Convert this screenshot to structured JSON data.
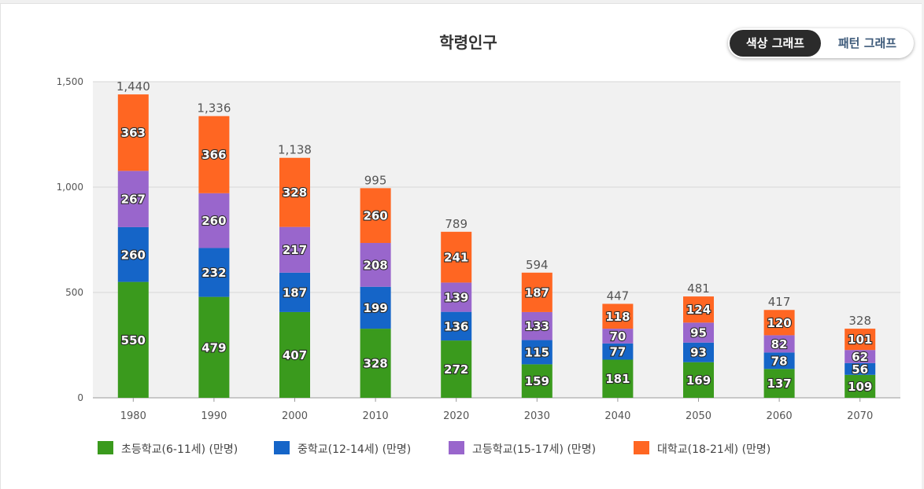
{
  "view_toggle": {
    "color_label": "색상 그래프",
    "pattern_label": "패턴 그래프"
  },
  "chart_data": {
    "type": "bar",
    "stacked": true,
    "title": "학령인구",
    "categories": [
      "1980",
      "1990",
      "2000",
      "2010",
      "2020",
      "2030",
      "2040",
      "2050",
      "2060",
      "2070"
    ],
    "series": [
      {
        "name": "초등학교(6-11세) (만명)",
        "color": "#3a9a1d",
        "values": [
          550,
          479,
          407,
          328,
          272,
          159,
          181,
          169,
          137,
          109
        ]
      },
      {
        "name": "중학교(12-14세) (만명)",
        "color": "#1565c8",
        "values": [
          260,
          232,
          187,
          199,
          136,
          115,
          77,
          93,
          78,
          56
        ]
      },
      {
        "name": "고등학교(15-17세) (만명)",
        "color": "#9966cc",
        "values": [
          267,
          260,
          217,
          208,
          139,
          133,
          70,
          95,
          82,
          62
        ]
      },
      {
        "name": "대학교(18-21세) (만명)",
        "color": "#ff6622",
        "values": [
          363,
          366,
          328,
          260,
          241,
          187,
          118,
          124,
          120,
          101
        ]
      }
    ],
    "totals": [
      "1,440",
      "1,336",
      "1,138",
      "995",
      "789",
      "594",
      "447",
      "481",
      "417",
      "328"
    ],
    "y_ticks": [
      0,
      500,
      1000,
      1500
    ],
    "y_tick_labels": [
      "0",
      "500",
      "1,000",
      "1,500"
    ],
    "ylim": [
      0,
      1500
    ],
    "xlabel": "",
    "ylabel": "",
    "grid": true,
    "legend_position": "bottom"
  }
}
